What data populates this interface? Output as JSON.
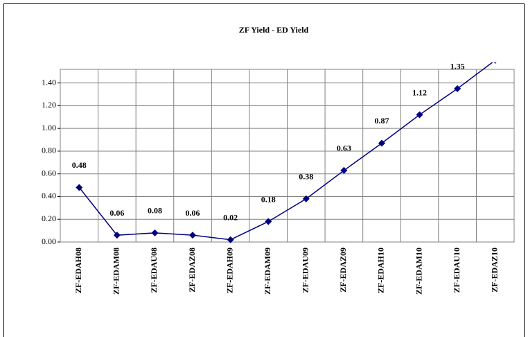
{
  "chart_data": {
    "type": "line",
    "title": "ZF Yield - ED Yield",
    "categories": [
      "ZF-EDAH08",
      "ZF-EDAM08",
      "ZF-EDAU08",
      "ZF-EDAZ08",
      "ZF-EDAH09",
      "ZF-EDAM09",
      "ZF-EDAU09",
      "ZF-EDAZ09",
      "ZF-EDAH10",
      "ZF-EDAM10",
      "ZF-EDAU10",
      "ZF-EDAZ10"
    ],
    "values": [
      0.48,
      0.06,
      0.08,
      0.06,
      0.02,
      0.18,
      0.38,
      0.63,
      0.87,
      1.12,
      1.35,
      1.6
    ],
    "color": "#000080",
    "ylim": [
      0,
      1.52
    ],
    "yticks": [
      {
        "value": 0,
        "label": "0.00"
      },
      {
        "value": 0.2,
        "label": "0.20"
      },
      {
        "value": 0.4,
        "label": "0.40"
      },
      {
        "value": 0.6,
        "label": "0.60"
      },
      {
        "value": 0.8,
        "label": "0.80"
      },
      {
        "value": 1,
        "label": "1.00"
      },
      {
        "value": 1.2,
        "label": "1.20"
      },
      {
        "value": 1.4,
        "label": "1.40"
      }
    ],
    "grid": true
  }
}
